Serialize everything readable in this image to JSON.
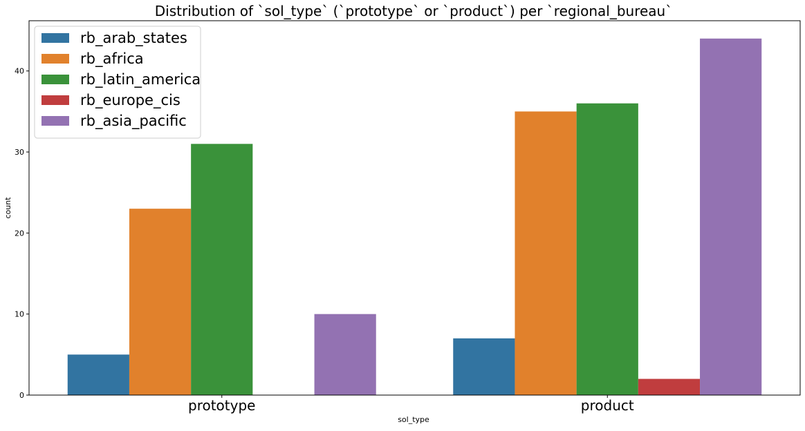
{
  "chart_data": {
    "type": "bar",
    "title": "Distribution of `sol_type` (`prototype` or `product`) per `regional_bureau`",
    "xlabel": "sol_type",
    "ylabel": "count",
    "categories": [
      "prototype",
      "product"
    ],
    "series": [
      {
        "name": "rb_arab_states",
        "color": "#3274a1",
        "values": [
          5,
          7
        ]
      },
      {
        "name": "rb_africa",
        "color": "#e1812c",
        "values": [
          23,
          35
        ]
      },
      {
        "name": "rb_latin_america",
        "color": "#3a923a",
        "values": [
          31,
          36
        ]
      },
      {
        "name": "rb_europe_cis",
        "color": "#c03d3e",
        "values": [
          0,
          2
        ]
      },
      {
        "name": "rb_asia_pacific",
        "color": "#9372b2",
        "values": [
          10,
          44
        ]
      }
    ],
    "ylim": [
      0,
      46.2
    ],
    "yticks": [
      0,
      10,
      20,
      30,
      40
    ],
    "grid": false,
    "legend_position": "top-left"
  }
}
